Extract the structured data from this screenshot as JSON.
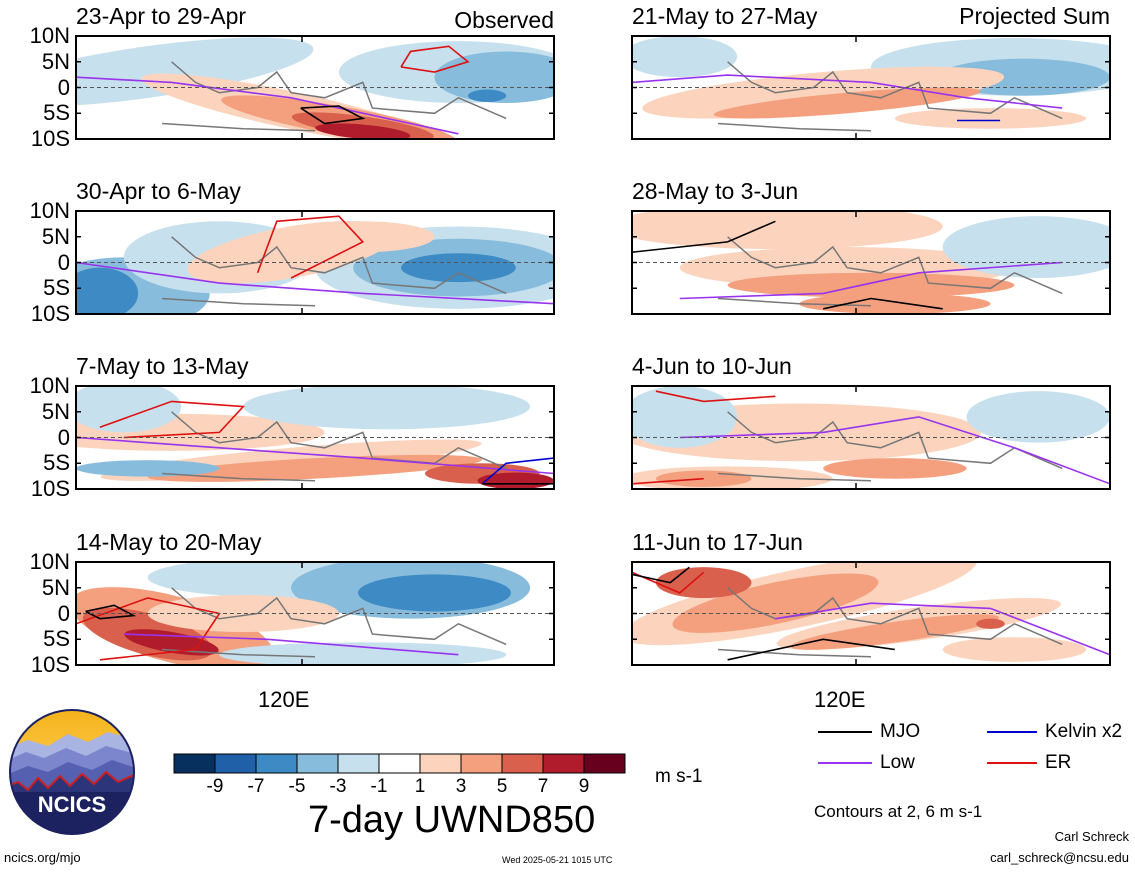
{
  "colors": {
    "mjo": "#000000",
    "kelvin": "#0000cc",
    "low": "#9933ee",
    "er": "#dd1111"
  },
  "header": {
    "left_label": "Observed",
    "right_label": "Projected Sum"
  },
  "chart_data": [
    {
      "type": "heatmap",
      "title": "23-Apr to 29-Apr",
      "ylabels": [
        "10N",
        "5N",
        "0",
        "5S",
        "10S"
      ],
      "xlabel": "120E"
    },
    {
      "type": "heatmap",
      "title": "30-Apr to 6-May",
      "ylabels": [
        "10N",
        "5N",
        "0",
        "5S",
        "10S"
      ],
      "xlabel": "120E"
    },
    {
      "type": "heatmap",
      "title": "7-May to 13-May",
      "ylabels": [
        "10N",
        "5N",
        "0",
        "5S",
        "10S"
      ],
      "xlabel": "120E"
    },
    {
      "type": "heatmap",
      "title": "14-May to 20-May",
      "ylabels": [
        "10N",
        "5N",
        "0",
        "5S",
        "10S"
      ],
      "xlabel": "120E"
    },
    {
      "type": "heatmap",
      "title": "21-May to 27-May",
      "ylabels": [
        "10N",
        "5N",
        "0",
        "5S",
        "10S"
      ],
      "xlabel": "120E"
    },
    {
      "type": "heatmap",
      "title": "28-May to 3-Jun",
      "ylabels": [
        "10N",
        "5N",
        "0",
        "5S",
        "10S"
      ],
      "xlabel": "120E"
    },
    {
      "type": "heatmap",
      "title": "4-Jun to 10-Jun",
      "ylabels": [
        "10N",
        "5N",
        "0",
        "5S",
        "10S"
      ],
      "xlabel": "120E"
    },
    {
      "type": "heatmap",
      "title": "11-Jun to 17-Jun",
      "ylabels": [
        "10N",
        "5N",
        "0",
        "5S",
        "10S"
      ],
      "xlabel": "120E"
    }
  ],
  "colorbar": {
    "colors": [
      "#08305e",
      "#1f60a8",
      "#3d8ac4",
      "#88bcdc",
      "#c6e0ee",
      "#ffffff",
      "#fcd4be",
      "#f4a07e",
      "#d8604c",
      "#b01c2c",
      "#67001f"
    ],
    "ticks": [
      "-9",
      "-7",
      "-5",
      "-3",
      "-1",
      "1",
      "3",
      "5",
      "7",
      "9"
    ],
    "units": "m s-1",
    "title": "7-day UWND850"
  },
  "legend": {
    "mjo": "MJO",
    "kelvin": "Kelvin x2",
    "low": "Low",
    "er": "ER",
    "contours_note": "Contours at 2, 6 m s-1"
  },
  "footer": {
    "logo_text": "NCICS",
    "url": "ncics.org/mjo",
    "timestamp": "Wed 2025-05-21 1015 UTC",
    "author": "Carl Schreck",
    "email": "carl_schreck@ncsu.edu"
  }
}
